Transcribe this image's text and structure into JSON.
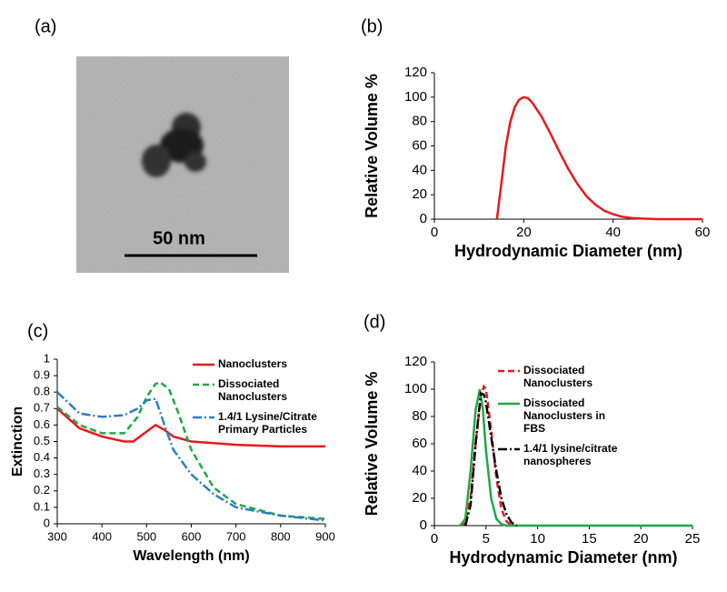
{
  "image_panel": {
    "panel_label": "(a)",
    "scale_bar": "50 nm"
  },
  "chart_data": [
    {
      "type": "line",
      "panel_label": "(b)",
      "x_label": "Hydrodynamic Diameter (nm)",
      "y_label": "Relative Volume %",
      "color": "#e8191b",
      "style": "solid",
      "x": [
        14,
        15,
        16,
        17,
        18,
        19,
        20,
        21,
        22,
        24,
        26,
        28,
        30,
        32,
        34,
        36,
        38,
        40,
        42,
        44,
        46,
        50,
        60
      ],
      "values": [
        0,
        30,
        60,
        80,
        92,
        98,
        100,
        99,
        95,
        84,
        70,
        55,
        41,
        29,
        19,
        12,
        7,
        4,
        2,
        1,
        0.5,
        0,
        0
      ],
      "xlim": [
        0,
        60
      ],
      "xticks": [
        0,
        20,
        40,
        60
      ],
      "ylim": [
        0,
        120
      ],
      "yticks": [
        0,
        20,
        40,
        60,
        80,
        100,
        120
      ]
    },
    {
      "type": "line",
      "panel_label": "(c)",
      "x_label": "Wavelength (nm)",
      "y_label": "Extinction",
      "series": [
        {
          "name": "Nanoclusters",
          "color": "#e8191b",
          "style": "solid",
          "x": [
            300,
            350,
            400,
            450,
            470,
            500,
            520,
            540,
            560,
            600,
            700,
            800,
            900
          ],
          "values": [
            0.7,
            0.58,
            0.53,
            0.5,
            0.5,
            0.56,
            0.6,
            0.57,
            0.53,
            0.5,
            0.48,
            0.47,
            0.47
          ]
        },
        {
          "name": "Dissociated Nanoclusters",
          "color": "#1fa843",
          "style": "dashed",
          "x": [
            300,
            350,
            400,
            450,
            480,
            500,
            520,
            530,
            550,
            570,
            600,
            650,
            700,
            800,
            900
          ],
          "values": [
            0.71,
            0.6,
            0.55,
            0.55,
            0.65,
            0.77,
            0.85,
            0.86,
            0.82,
            0.68,
            0.45,
            0.22,
            0.12,
            0.05,
            0.03
          ]
        },
        {
          "name": "1.4/1 Lysine/Citrate Primary Particles",
          "color": "#2a7fc9",
          "style": "dashdot",
          "x": [
            300,
            350,
            400,
            450,
            480,
            500,
            520,
            540,
            560,
            600,
            650,
            700,
            800,
            900
          ],
          "values": [
            0.8,
            0.67,
            0.65,
            0.66,
            0.7,
            0.75,
            0.76,
            0.6,
            0.45,
            0.3,
            0.18,
            0.1,
            0.05,
            0.02
          ]
        }
      ],
      "xlim": [
        300,
        900
      ],
      "xticks": [
        300,
        400,
        500,
        600,
        700,
        800,
        900
      ],
      "ylim": [
        0,
        1
      ],
      "yticks": [
        0,
        0.1,
        0.2,
        0.3,
        0.4,
        0.5,
        0.6,
        0.7,
        0.8,
        0.9,
        1
      ]
    },
    {
      "type": "line",
      "panel_label": "(d)",
      "x_label": "Hydrodynamic Diameter (nm)",
      "y_label": "Relative Volume %",
      "series": [
        {
          "name": "Dissociated Nanoclusters",
          "color": "#e8191b",
          "style": "dashed",
          "x": [
            2.5,
            3,
            3.5,
            4,
            4.5,
            4.8,
            5,
            5.5,
            6,
            6.5,
            7,
            7.5
          ],
          "values": [
            0,
            2,
            20,
            60,
            95,
            102,
            100,
            70,
            35,
            12,
            3,
            0
          ]
        },
        {
          "name": "Dissociated Nanoclusters in FBS",
          "color": "#1fa843",
          "style": "solid",
          "x": [
            2.5,
            3,
            3.5,
            4,
            4.4,
            4.7,
            5,
            5.5,
            6,
            6.5,
            7,
            25
          ],
          "values": [
            0,
            5,
            40,
            85,
            100,
            85,
            55,
            20,
            5,
            1,
            0,
            0
          ]
        },
        {
          "name": "1.4/1 lysine/citrate nanospheres",
          "color": "#000000",
          "style": "dashdot",
          "x": [
            3,
            3.5,
            4,
            4.5,
            4.8,
            5,
            5.5,
            6,
            6.5,
            7,
            7.5,
            8
          ],
          "values": [
            0,
            15,
            60,
            97,
            96,
            90,
            65,
            40,
            20,
            8,
            2,
            0
          ]
        }
      ],
      "xlim": [
        0,
        25
      ],
      "xticks": [
        0,
        5,
        10,
        15,
        20,
        25
      ],
      "ylim": [
        0,
        120
      ],
      "yticks": [
        0,
        20,
        40,
        60,
        80,
        100,
        120
      ]
    }
  ]
}
